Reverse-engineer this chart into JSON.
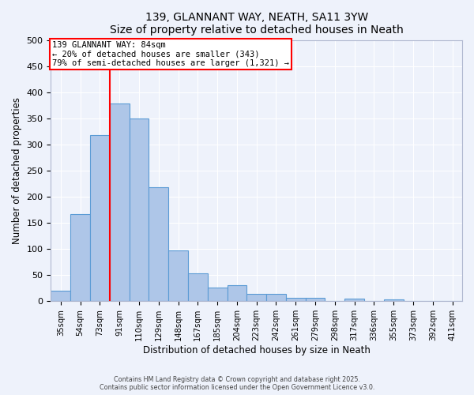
{
  "title": "139, GLANNANT WAY, NEATH, SA11 3YW",
  "subtitle": "Size of property relative to detached houses in Neath",
  "xlabel": "Distribution of detached houses by size in Neath",
  "ylabel": "Number of detached properties",
  "bin_labels": [
    "35sqm",
    "54sqm",
    "73sqm",
    "91sqm",
    "110sqm",
    "129sqm",
    "148sqm",
    "167sqm",
    "185sqm",
    "204sqm",
    "223sqm",
    "242sqm",
    "261sqm",
    "279sqm",
    "298sqm",
    "317sqm",
    "336sqm",
    "355sqm",
    "373sqm",
    "392sqm",
    "411sqm"
  ],
  "bar_values": [
    20,
    167,
    318,
    378,
    349,
    218,
    97,
    54,
    26,
    30,
    14,
    14,
    7,
    6,
    0,
    5,
    0,
    3,
    0,
    0,
    1
  ],
  "bar_color": "#aec6e8",
  "bar_edge_color": "#5b9bd5",
  "vline_x_idx": 3,
  "vline_color": "red",
  "annotation_line1": "139 GLANNANT WAY: 84sqm",
  "annotation_line2": "← 20% of detached houses are smaller (343)",
  "annotation_line3": "79% of semi-detached houses are larger (1,321) →",
  "ylim": [
    0,
    500
  ],
  "yticks": [
    0,
    50,
    100,
    150,
    200,
    250,
    300,
    350,
    400,
    450,
    500
  ],
  "bg_color": "#eef2fb",
  "grid_color": "#ffffff",
  "footer1": "Contains HM Land Registry data © Crown copyright and database right 2025.",
  "footer2": "Contains public sector information licensed under the Open Government Licence v3.0."
}
